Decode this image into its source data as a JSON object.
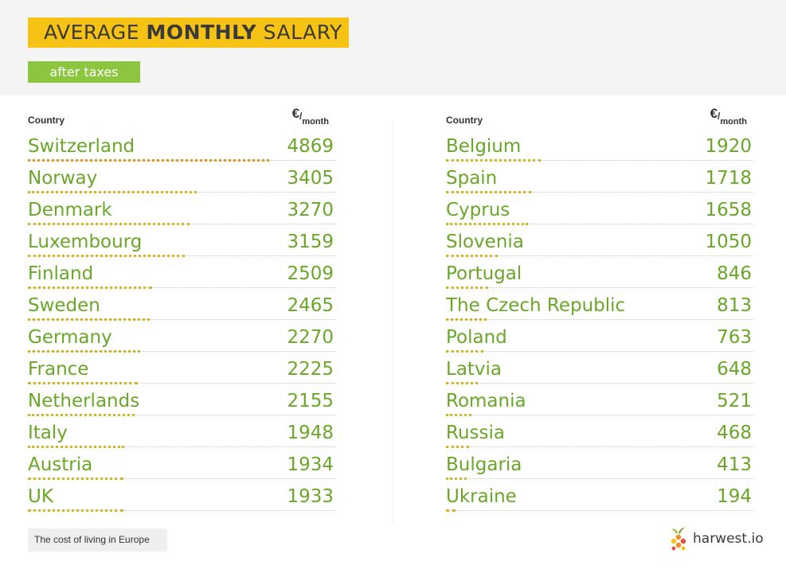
{
  "header": {
    "title_pre": "AVERAGE ",
    "title_bold": "MONTHLY",
    "title_post": " SALARY",
    "subtitle": "after taxes"
  },
  "columns": {
    "country": "Country",
    "unit_symbol": "€",
    "unit_sep": "/",
    "unit_sub": "month"
  },
  "footer": {
    "caption": "The cost of living in Europe",
    "brand": "harwest.io"
  },
  "colors": {
    "title_bg": "#f6c213",
    "subtitle_bg": "#8cc63f",
    "text_green": "#6aa728",
    "bar_gold": "#d4b623",
    "bar_orange": "#e29b22"
  },
  "chart_data": {
    "type": "table",
    "title": "AVERAGE MONTHLY SALARY",
    "subtitle": "after taxes",
    "columns": [
      "Country",
      "€/month"
    ],
    "xlim": [
      0,
      4869
    ],
    "rows": [
      {
        "country": "Switzerland",
        "value": 4869
      },
      {
        "country": "Norway",
        "value": 3405
      },
      {
        "country": "Denmark",
        "value": 3270
      },
      {
        "country": "Luxembourg",
        "value": 3159
      },
      {
        "country": "Finland",
        "value": 2509
      },
      {
        "country": "Sweden",
        "value": 2465
      },
      {
        "country": "Germany",
        "value": 2270
      },
      {
        "country": "France",
        "value": 2225
      },
      {
        "country": "Netherlands",
        "value": 2155
      },
      {
        "country": "Italy",
        "value": 1948
      },
      {
        "country": "Austria",
        "value": 1934
      },
      {
        "country": "UK",
        "value": 1933
      },
      {
        "country": "Belgium",
        "value": 1920
      },
      {
        "country": "Spain",
        "value": 1718
      },
      {
        "country": "Cyprus",
        "value": 1658
      },
      {
        "country": "Slovenia",
        "value": 1050
      },
      {
        "country": "Portugal",
        "value": 846
      },
      {
        "country": "The Czech Republic",
        "value": 813
      },
      {
        "country": "Poland",
        "value": 763
      },
      {
        "country": "Latvia",
        "value": 648
      },
      {
        "country": "Romania",
        "value": 521
      },
      {
        "country": "Russia",
        "value": 468
      },
      {
        "country": "Bulgaria",
        "value": 413
      },
      {
        "country": "Ukraine",
        "value": 194
      }
    ]
  }
}
